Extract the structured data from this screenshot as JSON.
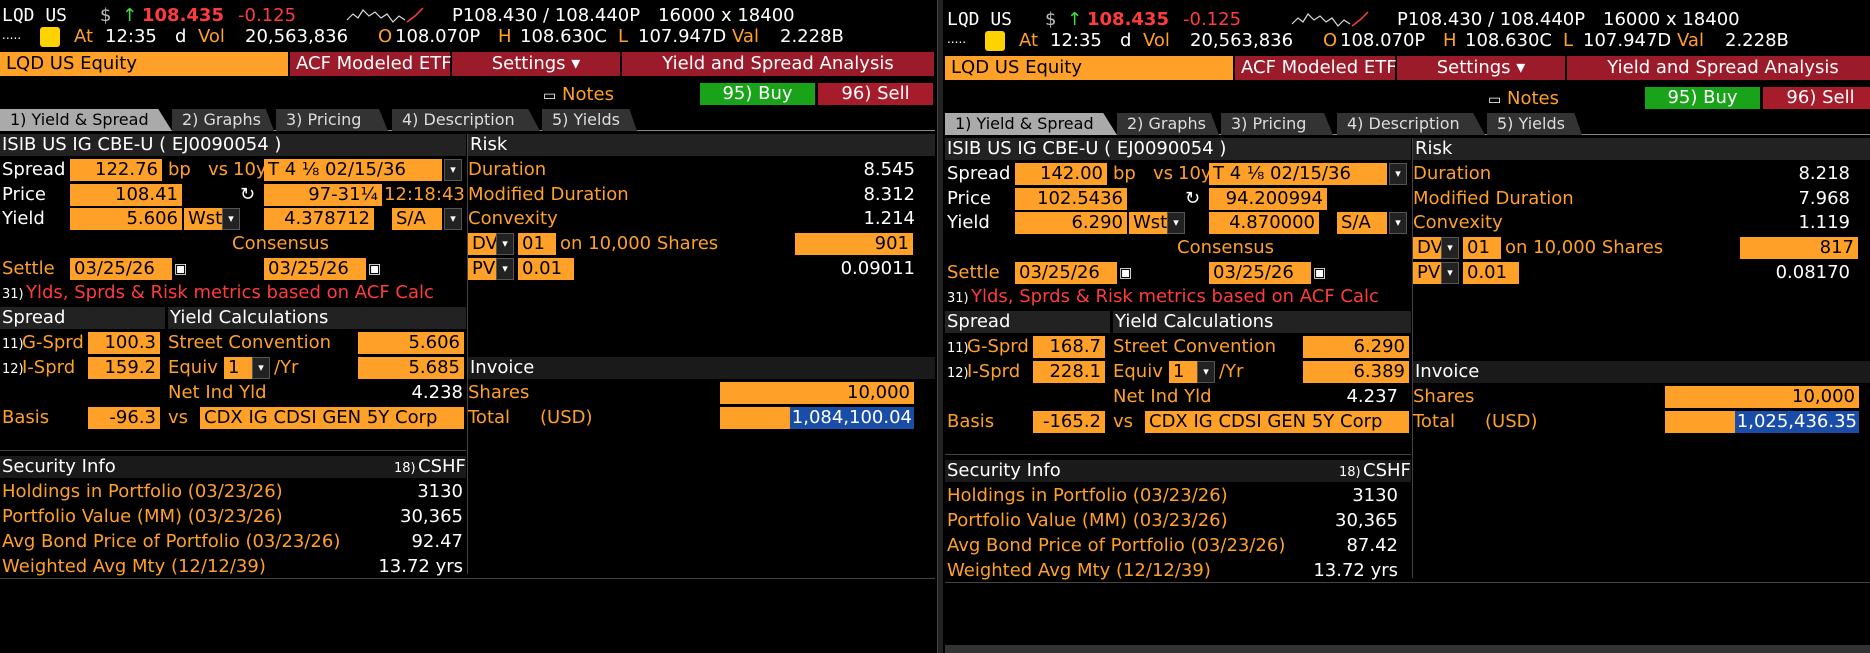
{
  "left": {
    "ticker": "LQD US",
    "currency": "$",
    "arrow": "↑",
    "last": "108.435",
    "change": "-0.125",
    "bid_ask": "P108.430 / 108.440P",
    "size": "16000 x 18400",
    "dots": ".....",
    "at_label": "At",
    "time": "12:35",
    "d": "d",
    "vol_label": "Vol",
    "vol": "20,563,836",
    "o_label": "O",
    "open": "108.070P",
    "h_label": "H",
    "high": "108.630C",
    "l_label": "L",
    "low": "107.947D",
    "val_label": "Val",
    "val": "2.228B",
    "security": "LQD US Equity",
    "acf": "ACF Modeled ETFs",
    "settings": "Settings ▾",
    "yas": "Yield and Spread Analysis",
    "notes": "Notes",
    "buy": "95) Buy",
    "sell": "96) Sell",
    "tabs": [
      "1) Yield & Spread",
      "2) Graphs",
      "3) Pricing",
      "4) Description",
      "5) Yields"
    ],
    "isib": "ISIB US IG CBE-U ( EJ0090054 )",
    "risk": "Risk",
    "spread_label": "Spread",
    "spread_val": "122.76",
    "bp": "bp",
    "vs": "vs",
    "tenor": "10y",
    "bench": "T 4 ⅛ 02/15/36",
    "duration_label": "Duration",
    "duration": "8.545",
    "price_label": "Price",
    "price_val": "108.41",
    "bench_price": "97-31¼",
    "bench_time": "12:18:43",
    "mod_dur_label": "Modified Duration",
    "mod_dur": "8.312",
    "yield_label": "Yield",
    "yield_val": "5.606",
    "wst": "Wst",
    "bench_yield": "4.378712",
    "sa": "S/A",
    "convexity_label": "Convexity",
    "convexity": "1.214",
    "consensus": "Consensus",
    "dv": "DV",
    "dv_num": "01",
    "dv_text": "on 10,000 Shares",
    "dv_val": "901",
    "settle_label": "Settle",
    "settle1": "03/25/26",
    "settle2": "03/25/26",
    "pv": "PV",
    "pv_num": "0.01",
    "pv_val": "0.09011",
    "note_num": "31)",
    "note": "Ylds, Sprds & Risk metrics based on ACF Calc",
    "spread_sec": "Spread",
    "yield_calc": "Yield Calculations",
    "gsprd_num": "11)",
    "gsprd_label": "G-Sprd",
    "gsprd": "100.3",
    "street_label": "Street Convention",
    "street": "5.606",
    "isprd_num": "12)",
    "isprd_label": "I-Sprd",
    "isprd": "159.2",
    "equiv_label": "Equiv",
    "equiv_n": "1",
    "per_yr": "/Yr",
    "equiv": "5.685",
    "invoice": "Invoice",
    "net_ind_label": "Net Ind Yld",
    "net_ind": "4.238",
    "shares_label": "Shares",
    "shares": "10,000",
    "basis_label": "Basis",
    "basis": "-96.3",
    "basis_vs": "vs",
    "cdx": "CDX IG CDSI GEN 5Y Corp",
    "total_label": "Total",
    "total_ccy": "(USD)",
    "total": "1,084,100.04",
    "sec_info": "Security Info",
    "cshf_num": "18)",
    "cshf": "CSHF",
    "hold_label": "Holdings in Portfolio (03/23/26)",
    "hold": "3130",
    "pval_label": "Portfolio Value (MM) (03/23/26)",
    "pval": "30,365",
    "avg_label": "Avg Bond Price of Portfolio (03/23/26)",
    "avg": "92.47",
    "wam_label": "Weighted Avg Mty (12/12/39)",
    "wam": "13.72 yrs"
  },
  "right": {
    "ticker": "LQD US",
    "currency": "$",
    "arrow": "↑",
    "last": "108.435",
    "change": "-0.125",
    "bid_ask": "P108.430 / 108.440P",
    "size": "16000 x 18400",
    "dots": ".....",
    "at_label": "At",
    "time": "12:35",
    "d": "d",
    "vol_label": "Vol",
    "vol": "20,563,836",
    "o_label": "O",
    "open": "108.070P",
    "h_label": "H",
    "high": "108.630C",
    "l_label": "L",
    "low": "107.947D",
    "val_label": "Val",
    "val": "2.228B",
    "security": "LQD US Equity",
    "acf": "ACF Modeled ETFs",
    "settings": "Settings ▾",
    "yas": "Yield and Spread Analysis",
    "notes": "Notes",
    "buy": "95) Buy",
    "sell": "96) Sell",
    "tabs": [
      "1) Yield & Spread",
      "2) Graphs",
      "3) Pricing",
      "4) Description",
      "5) Yields"
    ],
    "isib": "ISIB US IG CBE-U ( EJ0090054 )",
    "risk": "Risk",
    "spread_label": "Spread",
    "spread_val": "142.00",
    "bp": "bp",
    "vs": "vs",
    "tenor": "10y",
    "bench": "T 4 ⅛ 02/15/36",
    "duration_label": "Duration",
    "duration": "8.218",
    "price_label": "Price",
    "price_val": "102.5436",
    "bench_price": "94.200994",
    "bench_time": "",
    "mod_dur_label": "Modified Duration",
    "mod_dur": "7.968",
    "yield_label": "Yield",
    "yield_val": "6.290",
    "wst": "Wst",
    "bench_yield": "4.870000",
    "sa": "S/A",
    "convexity_label": "Convexity",
    "convexity": "1.119",
    "consensus": "Consensus",
    "dv": "DV",
    "dv_num": "01",
    "dv_text": "on 10,000 Shares",
    "dv_val": "817",
    "settle_label": "Settle",
    "settle1": "03/25/26",
    "settle2": "03/25/26",
    "pv": "PV",
    "pv_num": "0.01",
    "pv_val": "0.08170",
    "note_num": "31)",
    "note": "Ylds, Sprds & Risk metrics based on ACF Calc",
    "spread_sec": "Spread",
    "yield_calc": "Yield Calculations",
    "gsprd_num": "11)",
    "gsprd_label": "G-Sprd",
    "gsprd": "168.7",
    "street_label": "Street Convention",
    "street": "6.290",
    "isprd_num": "12)",
    "isprd_label": "I-Sprd",
    "isprd": "228.1",
    "equiv_label": "Equiv",
    "equiv_n": "1",
    "per_yr": "/Yr",
    "equiv": "6.389",
    "invoice": "Invoice",
    "net_ind_label": "Net Ind Yld",
    "net_ind": "4.237",
    "shares_label": "Shares",
    "shares": "10,000",
    "basis_label": "Basis",
    "basis": "-165.2",
    "basis_vs": "vs",
    "cdx": "CDX IG CDSI GEN 5Y Corp",
    "total_label": "Total",
    "total_ccy": "(USD)",
    "total": "1,025,436.35",
    "sec_info": "Security Info",
    "cshf_num": "18)",
    "cshf": "CSHF",
    "hold_label": "Holdings in Portfolio (03/23/26)",
    "hold": "3130",
    "pval_label": "Portfolio Value (MM) (03/23/26)",
    "pval": "30,365",
    "avg_label": "Avg Bond Price of Portfolio (03/23/26)",
    "avg": "87.42",
    "wam_label": "Weighted Avg Mty (12/12/39)",
    "wam": "13.72 yrs"
  }
}
